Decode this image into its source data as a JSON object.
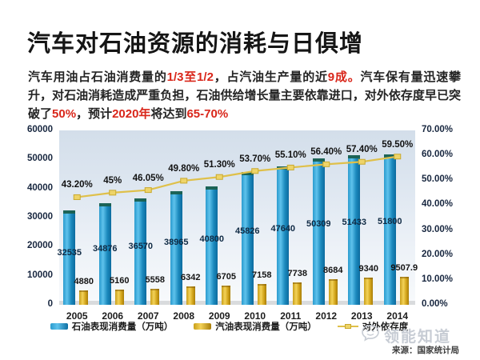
{
  "title": "汽车对石油资源的消耗与日俱增",
  "intro": {
    "segments": [
      {
        "text": "汽车用油占石油消费量的",
        "highlight": false
      },
      {
        "text": "1/3至1/2",
        "highlight": true
      },
      {
        "text": "，占汽油生产量的近",
        "highlight": false
      },
      {
        "text": "9成。",
        "highlight": true
      },
      {
        "text": "汽车保有量迅速攀升，对石油消耗造成严重负担，石油供给增长量主要依靠进口，对外依存度早已突破了",
        "highlight": false
      },
      {
        "text": "50%",
        "highlight": true
      },
      {
        "text": "，预计",
        "highlight": false
      },
      {
        "text": "2020年",
        "highlight": true
      },
      {
        "text": "将达到",
        "highlight": false
      },
      {
        "text": "65-70%",
        "highlight": true
      }
    ]
  },
  "chart_data": {
    "type": "bar+line",
    "categories": [
      "2005",
      "2006",
      "2007",
      "2008",
      "2009",
      "2010",
      "2011",
      "2012",
      "2013",
      "2014"
    ],
    "series": [
      {
        "name": "石油表现消费量（万吨）",
        "type": "bar",
        "axis": "left",
        "color": "#1b89bd",
        "values": [
          32535,
          34876,
          36570,
          38965,
          40800,
          45826,
          47640,
          50309,
          51433,
          51800
        ],
        "labels": [
          "32535",
          "34876",
          "36570",
          "38965",
          "40800",
          "45826",
          "47640",
          "50309",
          "51433",
          "51800"
        ]
      },
      {
        "name": "汽油表现消费量（万吨）",
        "type": "bar",
        "axis": "left",
        "color": "#d2a41a",
        "values": [
          4880,
          5160,
          5558,
          6342,
          6705,
          7158,
          7738,
          8684,
          9340,
          9507.9
        ],
        "labels": [
          "4880",
          "5160",
          "5558",
          "6342",
          "6705",
          "7158",
          "7738",
          "8684",
          "9340",
          "9507.9"
        ]
      },
      {
        "name": "对外依存度",
        "type": "line",
        "axis": "right",
        "color": "#dfc04a",
        "values": [
          43.2,
          45,
          46.05,
          49.8,
          51.3,
          53.7,
          55.1,
          56.4,
          57.4,
          59.5
        ],
        "labels": [
          "43.20%",
          "45%",
          "46.05%",
          "49.80%",
          "51.30%",
          "53.70%",
          "55.10%",
          "56.40%",
          "57.40%",
          "59.50%"
        ]
      }
    ],
    "left_axis": {
      "min": 0,
      "max": 60000,
      "ticks": [
        "60000",
        "50000",
        "40000",
        "30000",
        "20000",
        "10000",
        "0"
      ]
    },
    "right_axis": {
      "min": 0,
      "max": 70,
      "ticks": [
        "70.00%",
        "60.00%",
        "50.00%",
        "40.00%",
        "30.00%",
        "20.00%",
        "10.00%",
        "0.00%"
      ]
    },
    "legend_position": "bottom",
    "grid": false
  },
  "watermark": {
    "brand": "领能知道",
    "source": "来源：国家统计局"
  }
}
